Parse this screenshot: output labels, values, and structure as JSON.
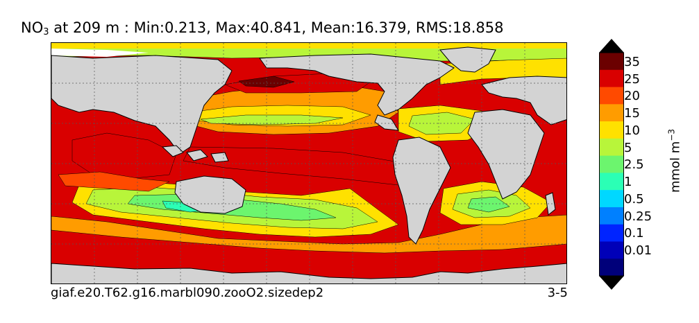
{
  "title": {
    "species": "NO",
    "subscript": "3",
    "rest": " at 209 m : Min:0.213, Max:40.841, Mean:16.379, RMS:18.858"
  },
  "footer": {
    "run": "giaf.e20.T62.g16.marbl090.zooO2.sizedep2",
    "period": "3-5"
  },
  "colorbar": {
    "units_base": "mmol m",
    "units_exp": "−3",
    "levels": [
      "35",
      "25",
      "20",
      "15",
      "10",
      "5",
      "2.5",
      "1",
      "0.5",
      "0.25",
      "0.1",
      "0.01"
    ],
    "colors": [
      "#6b0000",
      "#d90000",
      "#ff4a00",
      "#ff9c00",
      "#ffe100",
      "#b8f53a",
      "#6cf56e",
      "#2bffb5",
      "#00d8ff",
      "#0080ff",
      "#0024ff",
      "#0000b8",
      "#00007a"
    ],
    "over_color": "#000000",
    "under_color": "#000000"
  },
  "map": {
    "land_color": "#d3d3d3",
    "missing_color": "#ffffff"
  }
}
